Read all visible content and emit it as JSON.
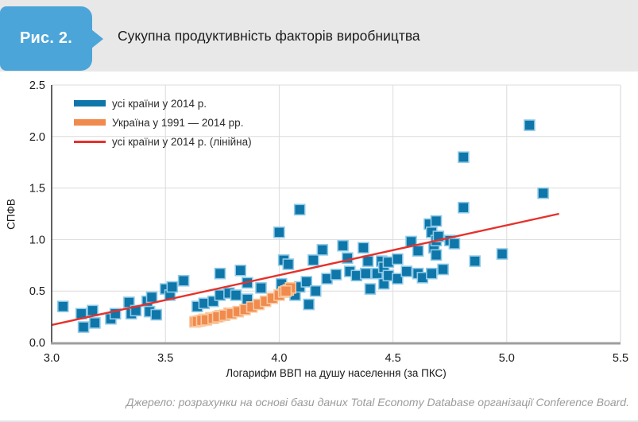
{
  "header": {
    "figure_label": "Рис. 2.",
    "title": "Сукупна продуктивність факторів виробництва",
    "badge_color": "#4ba5d9",
    "strip_color": "#e8e8e8"
  },
  "chart_data": {
    "type": "scatter",
    "title": "Сукупна продуктивність факторів виробництва",
    "xlabel": "Логарифм ВВП на душу населення (за ПКС)",
    "ylabel": "СПФВ",
    "xlim": [
      3.0,
      5.5
    ],
    "ylim": [
      0.0,
      2.5
    ],
    "xticks": [
      3.0,
      3.5,
      4.0,
      4.5,
      5.0,
      5.5
    ],
    "yticks": [
      0.0,
      0.5,
      1.0,
      1.5,
      2.0,
      2.5
    ],
    "grid": true,
    "legend_position": "top-left",
    "series": [
      {
        "name": "усі країни у 2014 р.",
        "type": "scatter",
        "marker": "square",
        "color": "#0e76a8",
        "edge": "#8fcae8",
        "points": [
          [
            3.05,
            0.35
          ],
          [
            3.13,
            0.28
          ],
          [
            3.14,
            0.15
          ],
          [
            3.18,
            0.31
          ],
          [
            3.19,
            0.19
          ],
          [
            3.26,
            0.23
          ],
          [
            3.28,
            0.28
          ],
          [
            3.34,
            0.39
          ],
          [
            3.35,
            0.28
          ],
          [
            3.37,
            0.31
          ],
          [
            3.42,
            0.4
          ],
          [
            3.43,
            0.3
          ],
          [
            3.44,
            0.44
          ],
          [
            3.46,
            0.27
          ],
          [
            3.5,
            0.52
          ],
          [
            3.52,
            0.46
          ],
          [
            3.53,
            0.54
          ],
          [
            3.58,
            0.6
          ],
          [
            3.64,
            0.35
          ],
          [
            3.67,
            0.38
          ],
          [
            3.71,
            0.4
          ],
          [
            3.74,
            0.67
          ],
          [
            3.74,
            0.46
          ],
          [
            3.78,
            0.48
          ],
          [
            3.81,
            0.46
          ],
          [
            3.83,
            0.7
          ],
          [
            3.86,
            0.58
          ],
          [
            3.86,
            0.42
          ],
          [
            3.92,
            0.53
          ],
          [
            4.0,
            1.07
          ],
          [
            4.01,
            0.57
          ],
          [
            4.02,
            0.8
          ],
          [
            4.04,
            0.76
          ],
          [
            4.07,
            0.46
          ],
          [
            4.09,
            1.29
          ],
          [
            4.09,
            0.54
          ],
          [
            4.12,
            0.59
          ],
          [
            4.13,
            0.37
          ],
          [
            4.15,
            0.8
          ],
          [
            4.16,
            0.5
          ],
          [
            4.19,
            0.9
          ],
          [
            4.21,
            0.62
          ],
          [
            4.25,
            0.66
          ],
          [
            4.28,
            0.94
          ],
          [
            4.3,
            0.82
          ],
          [
            4.31,
            0.69
          ],
          [
            4.34,
            0.65
          ],
          [
            4.37,
            0.92
          ],
          [
            4.38,
            0.67
          ],
          [
            4.39,
            0.79
          ],
          [
            4.4,
            0.52
          ],
          [
            4.43,
            0.67
          ],
          [
            4.45,
            0.79
          ],
          [
            4.46,
            0.73
          ],
          [
            4.46,
            0.57
          ],
          [
            4.48,
            0.78
          ],
          [
            4.48,
            0.65
          ],
          [
            4.52,
            0.81
          ],
          [
            4.52,
            0.62
          ],
          [
            4.56,
            0.69
          ],
          [
            4.58,
            0.98
          ],
          [
            4.61,
            0.89
          ],
          [
            4.61,
            0.67
          ],
          [
            4.63,
            0.63
          ],
          [
            4.66,
            1.15
          ],
          [
            4.67,
            1.07
          ],
          [
            4.67,
            0.67
          ],
          [
            4.68,
            0.92
          ],
          [
            4.69,
            1.18
          ],
          [
            4.69,
            0.99
          ],
          [
            4.69,
            0.85
          ],
          [
            4.7,
            1.03
          ],
          [
            4.72,
            0.71
          ],
          [
            4.75,
            0.99
          ],
          [
            4.77,
            0.96
          ],
          [
            4.81,
            1.8
          ],
          [
            4.81,
            1.31
          ],
          [
            4.86,
            0.79
          ],
          [
            4.98,
            0.86
          ],
          [
            5.1,
            2.11
          ],
          [
            5.16,
            1.45
          ]
        ]
      },
      {
        "name": "Україна у 1991 — 2014 рр.",
        "type": "scatter",
        "marker": "square",
        "color": "#f08a4d",
        "edge": "#f9c9a0",
        "points": [
          [
            3.78,
            0.285
          ],
          [
            3.74,
            0.26
          ],
          [
            3.7,
            0.24
          ],
          [
            3.67,
            0.225
          ],
          [
            3.65,
            0.21
          ],
          [
            3.63,
            0.2
          ],
          [
            3.64,
            0.205
          ],
          [
            3.66,
            0.215
          ],
          [
            3.68,
            0.22
          ],
          [
            3.71,
            0.235
          ],
          [
            3.73,
            0.25
          ],
          [
            3.76,
            0.265
          ],
          [
            3.79,
            0.28
          ],
          [
            3.82,
            0.3
          ],
          [
            3.85,
            0.32
          ],
          [
            3.88,
            0.345
          ],
          [
            3.91,
            0.37
          ],
          [
            3.94,
            0.4
          ],
          [
            3.97,
            0.43
          ],
          [
            4.0,
            0.46
          ],
          [
            4.02,
            0.49
          ],
          [
            4.04,
            0.51
          ],
          [
            4.05,
            0.53
          ],
          [
            4.03,
            0.5
          ]
        ]
      },
      {
        "name": "усі країни у 2014 р. (лінійна)",
        "type": "line",
        "color": "#e6312b",
        "points": [
          [
            3.0,
            0.17
          ],
          [
            5.23,
            1.25
          ]
        ]
      }
    ],
    "colors": {
      "gridline": "#dcdcdc",
      "frame": "#d6d6d6",
      "left_spine": "#3a3a3a",
      "bottom_spine": "#9e9e9e",
      "tick_label": "#1a1a1a"
    }
  },
  "footer": {
    "source": "Джерело: розрахунки на основі бази даних Total Economy Database організації Conference Board."
  }
}
